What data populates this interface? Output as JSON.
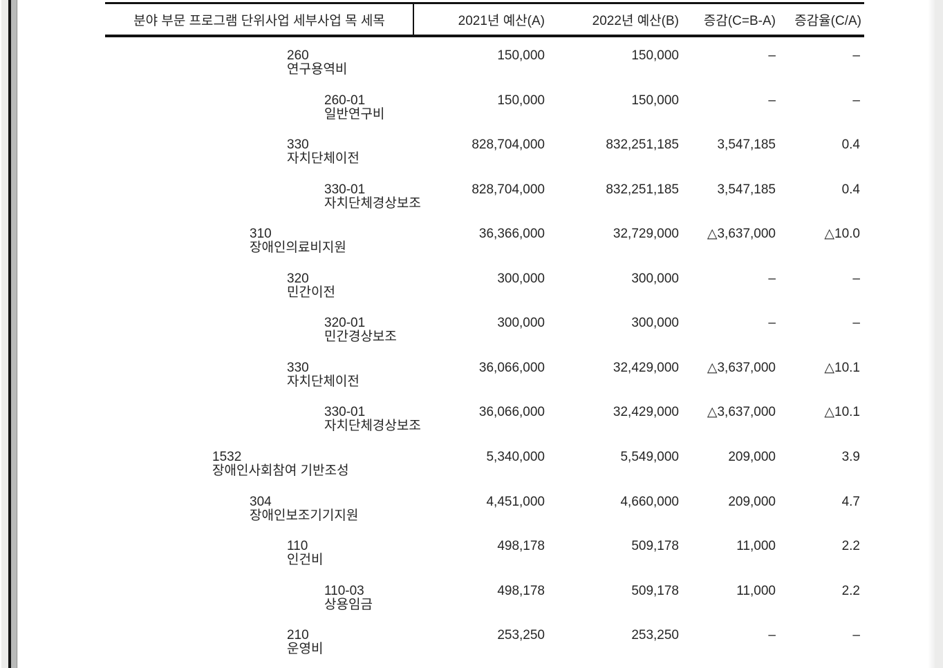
{
  "table": {
    "header": {
      "hierarchy": "분야 부문 프로그램 단위사업 세부사업 목 세목",
      "budget_2021": "2021년 예산(A)",
      "budget_2022": "2022년 예산(B)",
      "change": "증감(C=B-A)",
      "change_rate": "증감율(C/A)"
    },
    "rows": [
      {
        "code": "260",
        "name": "연구용역비",
        "level": 3,
        "budget_2021": "150,000",
        "budget_2022": "150,000",
        "change": "–",
        "change_rate": "–"
      },
      {
        "code": "260-01",
        "name": "일반연구비",
        "level": 4,
        "budget_2021": "150,000",
        "budget_2022": "150,000",
        "change": "–",
        "change_rate": "–"
      },
      {
        "code": "330",
        "name": "자치단체이전",
        "level": 3,
        "budget_2021": "828,704,000",
        "budget_2022": "832,251,185",
        "change": "3,547,185",
        "change_rate": "0.4"
      },
      {
        "code": "330-01",
        "name": "자치단체경상보조",
        "level": 4,
        "budget_2021": "828,704,000",
        "budget_2022": "832,251,185",
        "change": "3,547,185",
        "change_rate": "0.4"
      },
      {
        "code": "310",
        "name": "장애인의료비지원",
        "level": 2,
        "budget_2021": "36,366,000",
        "budget_2022": "32,729,000",
        "change": "△3,637,000",
        "change_rate": "△10.0"
      },
      {
        "code": "320",
        "name": "민간이전",
        "level": 3,
        "budget_2021": "300,000",
        "budget_2022": "300,000",
        "change": "–",
        "change_rate": "–"
      },
      {
        "code": "320-01",
        "name": "민간경상보조",
        "level": 4,
        "budget_2021": "300,000",
        "budget_2022": "300,000",
        "change": "–",
        "change_rate": "–"
      },
      {
        "code": "330",
        "name": "자치단체이전",
        "level": 3,
        "budget_2021": "36,066,000",
        "budget_2022": "32,429,000",
        "change": "△3,637,000",
        "change_rate": "△10.1"
      },
      {
        "code": "330-01",
        "name": "자치단체경상보조",
        "level": 4,
        "budget_2021": "36,066,000",
        "budget_2022": "32,429,000",
        "change": "△3,637,000",
        "change_rate": "△10.1"
      },
      {
        "code": "1532",
        "name": "장애인사회참여 기반조성",
        "level": 1,
        "budget_2021": "5,340,000",
        "budget_2022": "5,549,000",
        "change": "209,000",
        "change_rate": "3.9"
      },
      {
        "code": "304",
        "name": "장애인보조기기지원",
        "level": 2,
        "budget_2021": "4,451,000",
        "budget_2022": "4,660,000",
        "change": "209,000",
        "change_rate": "4.7"
      },
      {
        "code": "110",
        "name": "인건비",
        "level": 3,
        "budget_2021": "498,178",
        "budget_2022": "509,178",
        "change": "11,000",
        "change_rate": "2.2"
      },
      {
        "code": "110-03",
        "name": "상용임금",
        "level": 4,
        "budget_2021": "498,178",
        "budget_2022": "509,178",
        "change": "11,000",
        "change_rate": "2.2"
      },
      {
        "code": "210",
        "name": "운영비",
        "level": 3,
        "budget_2021": "253,250",
        "budget_2022": "253,250",
        "change": "–",
        "change_rate": "–"
      }
    ]
  },
  "colors": {
    "text": "#262626",
    "table_line": "#121212",
    "page": "#ffffff",
    "viewer_background": "#ececeb",
    "page_edge_bar": "#b9bab9"
  }
}
